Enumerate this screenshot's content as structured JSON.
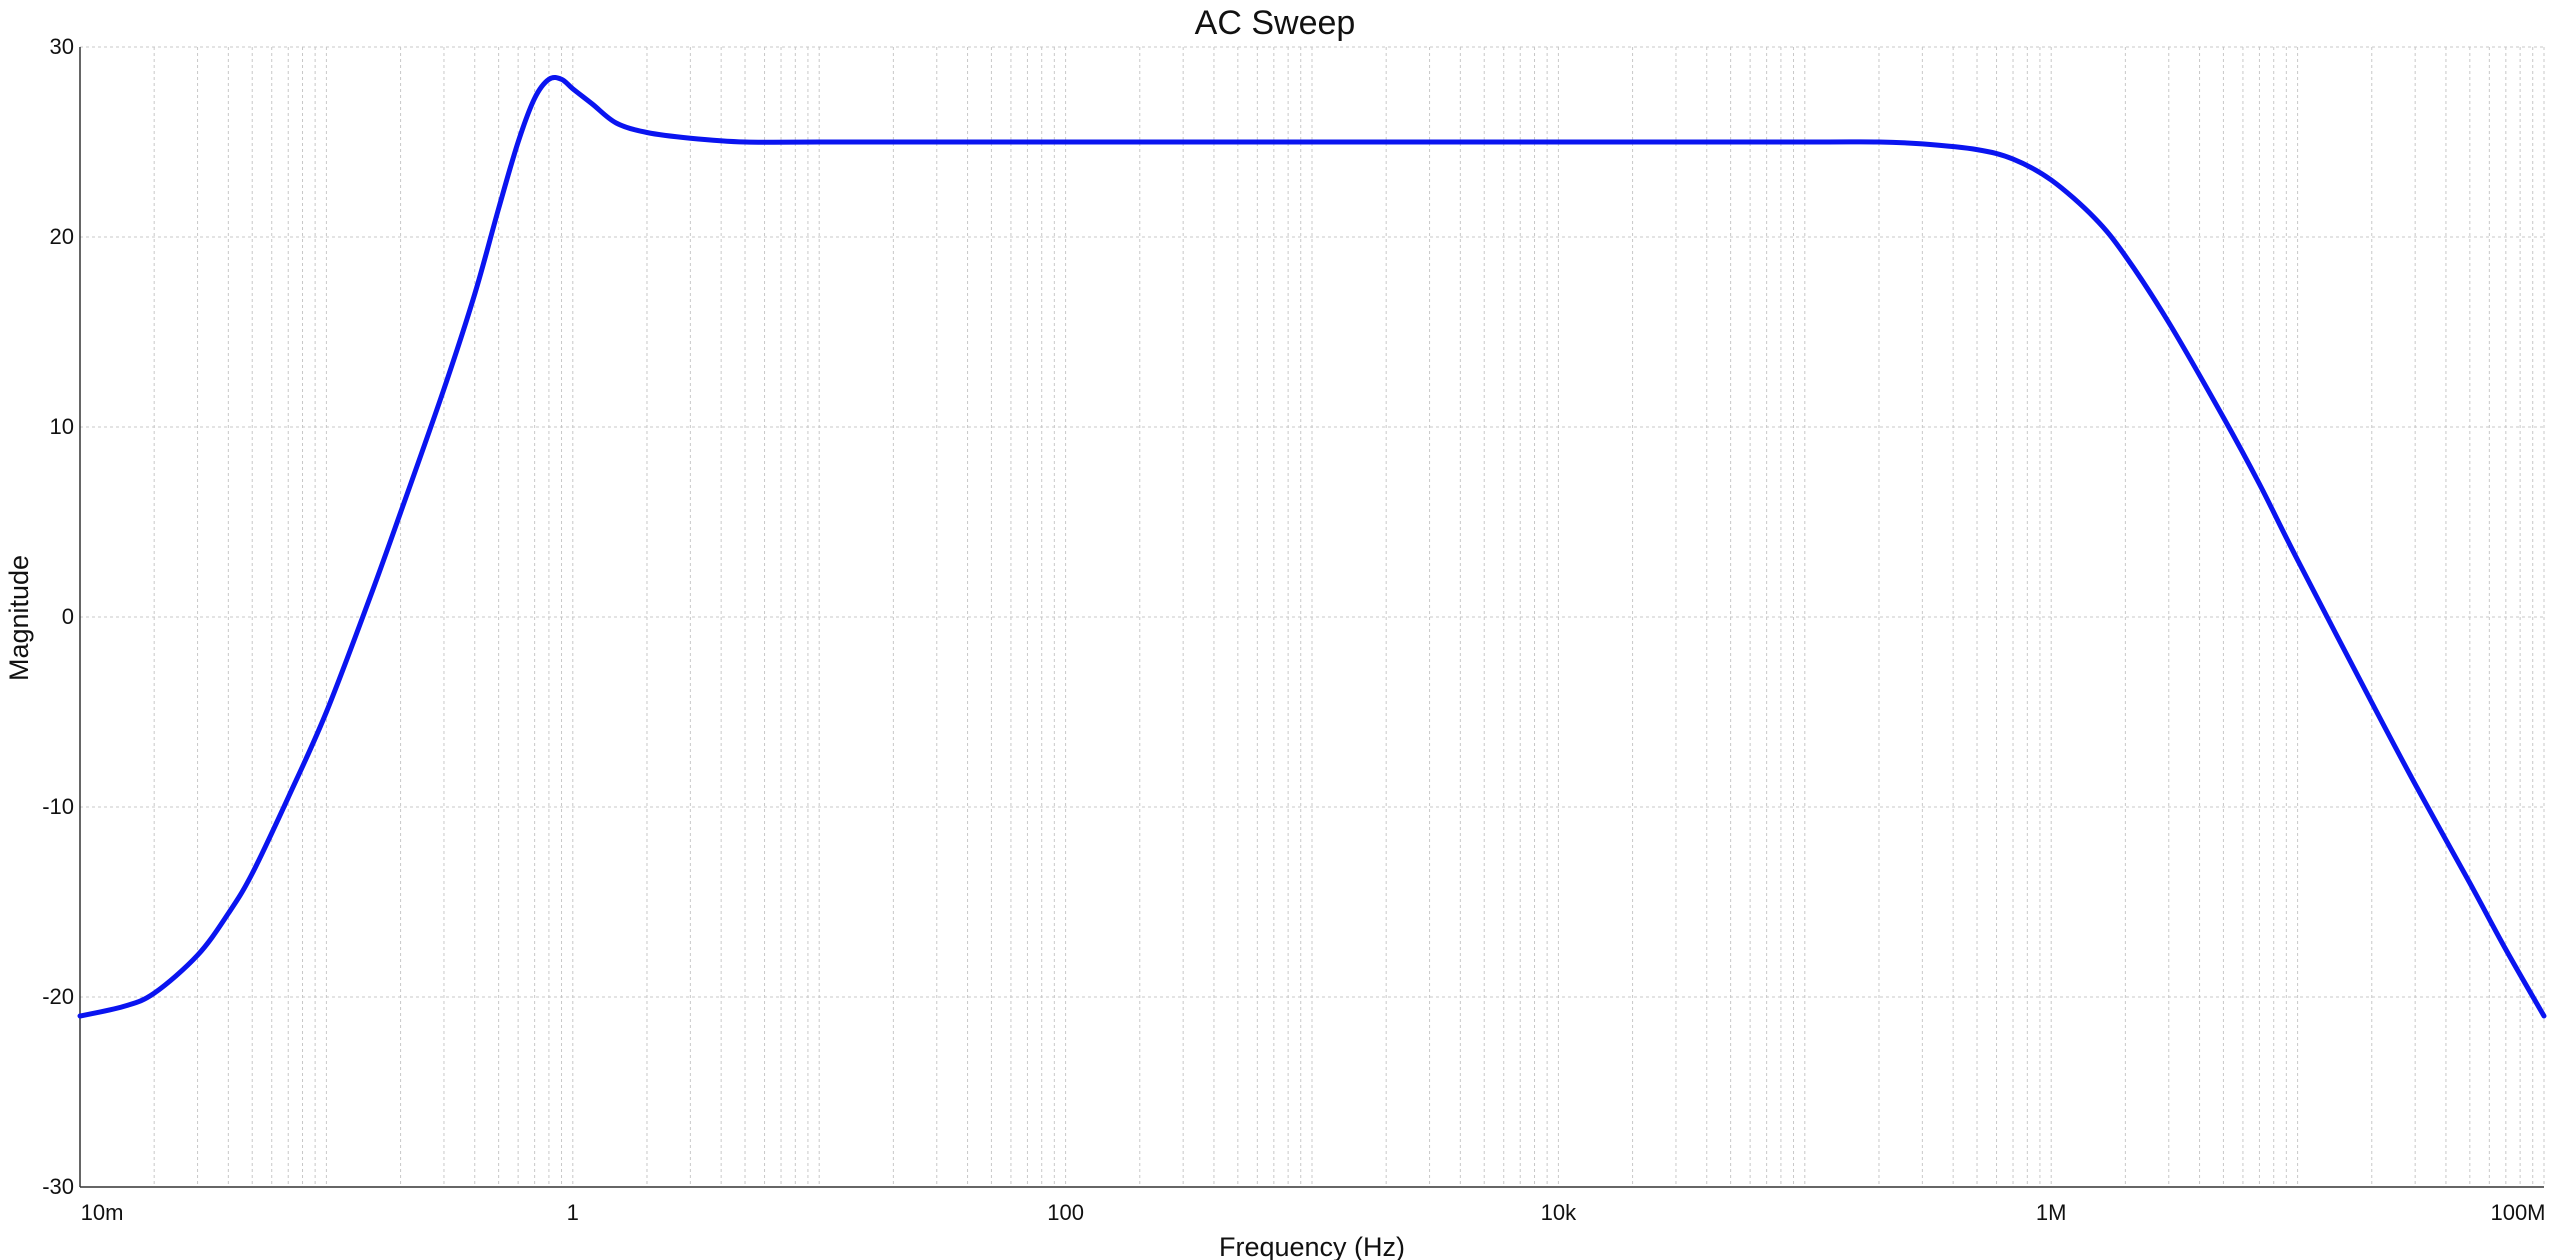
{
  "chart_data": {
    "type": "line",
    "title": "AC Sweep",
    "xlabel": "Frequency (Hz)",
    "ylabel": "Magnitude",
    "x_scale": "log",
    "xlim": [
      0.01,
      100000000
    ],
    "ylim": [
      -30,
      30
    ],
    "x_ticks": [
      {
        "value": 0.01,
        "label": "10m"
      },
      {
        "value": 1,
        "label": "1"
      },
      {
        "value": 100,
        "label": "100"
      },
      {
        "value": 10000,
        "label": "10k"
      },
      {
        "value": 1000000,
        "label": "1M"
      },
      {
        "value": 100000000,
        "label": "100M"
      }
    ],
    "y_ticks": [
      {
        "value": 30,
        "label": "30"
      },
      {
        "value": 20,
        "label": "20"
      },
      {
        "value": 10,
        "label": "10"
      },
      {
        "value": 0,
        "label": "0"
      },
      {
        "value": -10,
        "label": "-10"
      },
      {
        "value": -20,
        "label": "-20"
      },
      {
        "value": -30,
        "label": "-30"
      }
    ],
    "grid": true,
    "line_color": "#0a14f0",
    "grid_color": "#c8c8c8",
    "series": [
      {
        "x": [
          0.01,
          0.015,
          0.02,
          0.03,
          0.04,
          0.05,
          0.07,
          0.1,
          0.15,
          0.2,
          0.3,
          0.4,
          0.5,
          0.6,
          0.7,
          0.8,
          0.9,
          1.0,
          1.2,
          1.5,
          2,
          3,
          5,
          10,
          100,
          1000,
          10000,
          100000,
          200000,
          300000,
          500000,
          700000,
          1000000,
          1500000,
          2000000,
          3000000,
          5000000,
          7000000,
          10000000,
          20000000,
          30000000,
          50000000,
          70000000,
          100000000
        ],
        "values": [
          -21.0,
          -20.5,
          -19.8,
          -17.8,
          -15.6,
          -13.5,
          -9.5,
          -5.0,
          1.0,
          5.5,
          12.0,
          17.0,
          21.5,
          25.0,
          27.3,
          28.3,
          28.3,
          27.8,
          27.0,
          26.0,
          25.5,
          25.2,
          25.0,
          25.0,
          25.0,
          25.0,
          25.0,
          25.0,
          25.0,
          24.9,
          24.6,
          24.1,
          23.0,
          21.0,
          19.0,
          15.5,
          10.5,
          7.0,
          3.0,
          -4.5,
          -8.8,
          -14.0,
          -17.5,
          -21.0
        ]
      }
    ]
  }
}
